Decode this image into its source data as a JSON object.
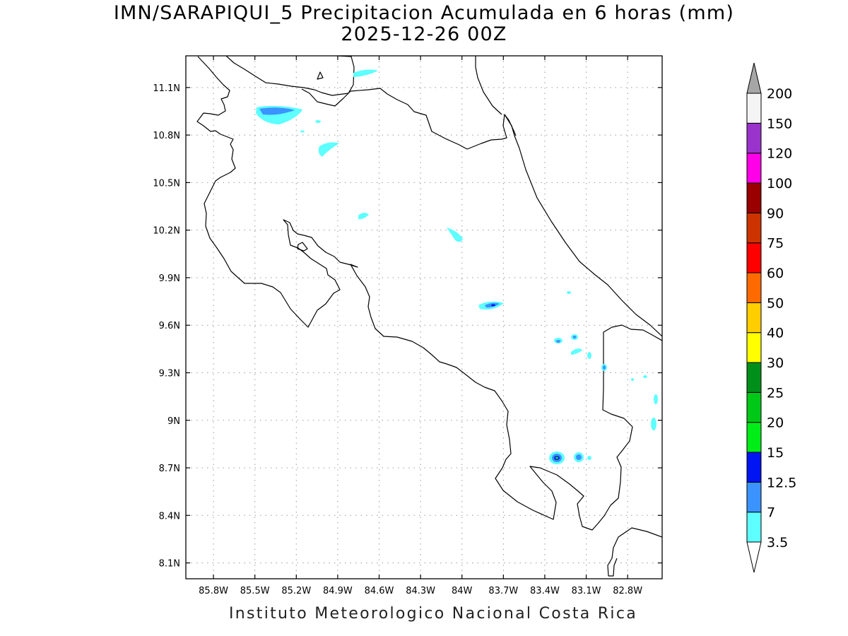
{
  "title": {
    "line1": "IMN/SARAPIQUI_5 Precipitacion Acumulada en 6 horas (mm)",
    "line2": "2025-12-26 00Z"
  },
  "footer": "Instituto Meteorologico Nacional Costa Rica",
  "map": {
    "lon_range": [
      -86.0,
      -82.55
    ],
    "lat_range": [
      8.0,
      11.3
    ],
    "x_ticks": [
      "85.8W",
      "85.5W",
      "85.2W",
      "84.9W",
      "84.6W",
      "84.3W",
      "84W",
      "83.7W",
      "83.4W",
      "83.1W",
      "82.8W"
    ],
    "x_tick_values": [
      -85.8,
      -85.5,
      -85.2,
      -84.9,
      -84.6,
      -84.3,
      -84.0,
      -83.7,
      -83.4,
      -83.1,
      -82.8
    ],
    "y_ticks": [
      "11.1N",
      "10.8N",
      "10.5N",
      "10.2N",
      "9.9N",
      "9.6N",
      "9.3N",
      "9N",
      "8.7N",
      "8.4N",
      "8.1N"
    ],
    "y_tick_values": [
      11.1,
      10.8,
      10.5,
      10.2,
      9.9,
      9.6,
      9.3,
      9.0,
      8.7,
      8.4,
      8.1
    ],
    "grid": true
  },
  "colorbar": {
    "labels": [
      "3.5",
      "7",
      "12.5",
      "15",
      "20",
      "25",
      "30",
      "40",
      "50",
      "60",
      "75",
      "90",
      "100",
      "120",
      "150",
      "200"
    ],
    "colors": [
      "#5dffff",
      "#3b93ff",
      "#0015f2",
      "#00ed17",
      "#00c817",
      "#00901a",
      "#ffff00",
      "#ffcd00",
      "#ff6a00",
      "#ff0000",
      "#cc3300",
      "#990000",
      "#ff00e8",
      "#9933cc",
      "#f4f4f4"
    ],
    "over_color": "#a6a6a6",
    "under_color": "#ffffff"
  }
}
